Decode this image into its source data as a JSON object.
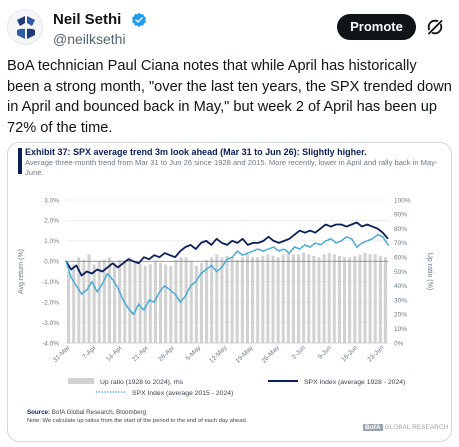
{
  "author": {
    "name": "Neil Sethi",
    "handle": "@neilksethi"
  },
  "header": {
    "promote_label": "Promote",
    "grok_icon": "grok-slash-icon",
    "verified_icon": "verified-badge-icon"
  },
  "tweet": {
    "text": "BoA technician Paul Ciana notes that while April has historically been a strong month, \"over the last ten years, the SPX trended down in April and bounced back in May,\" but week 2 of April has been up 72% of the time."
  },
  "exhibit": {
    "title": "Exhibit 37: SPX average trend 3m look ahead (Mar 31 to Jun 26): Slightly higher.",
    "subtitle": "Average three-month trend from Mar 31 to Jun 26 since 1928 and 2015. More recently, lower in April and rally back in May-June.",
    "source_label": "Source:",
    "source_text": "BofA Global Research, Bloomberg",
    "note": "Note: We calculate up ratios from the start of the period to the end of each day ahead.",
    "logo_text": "GLOBAL RESEARCH",
    "logo_box": "BofA"
  },
  "colors": {
    "navy": "#0a1f5c",
    "dotted": "#3fa6d8",
    "bars": "#d2d2d2",
    "grid": "#e3e3e3",
    "tick": "#6d7a86"
  },
  "chart_data": {
    "type": "bar",
    "x_ticks": [
      "31-Mar",
      "7-Apr",
      "14-Apr",
      "21-Apr",
      "28-Apr",
      "5-May",
      "12-May",
      "19-May",
      "26-May",
      "2-Jun",
      "9-Jun",
      "16-Jun",
      "23-Jun"
    ],
    "ylabel": "Avg return (%)",
    "ylabel2": "Up ratio (%)",
    "y_ticks": [
      "3.0%",
      "2.0%",
      "1.0%",
      "0.0%",
      "-1.0%",
      "-2.0%",
      "-3.0%",
      "-4.0%"
    ],
    "y2_ticks": [
      "100%",
      "90%",
      "80%",
      "70%",
      "60%",
      "50%",
      "40%",
      "30%",
      "20%",
      "10%",
      "0%"
    ],
    "ylim": [
      -4,
      3
    ],
    "y2lim": [
      0,
      100
    ],
    "series": [
      {
        "name": "Up ratio (1928 to 2024), rhs",
        "kind": "bar",
        "axis": "right",
        "values": [
          50,
          55,
          60,
          58,
          62,
          55,
          57,
          58,
          60,
          56,
          58,
          58,
          60,
          57,
          55,
          54,
          55,
          57,
          56,
          55,
          54,
          58,
          60,
          60,
          57,
          54,
          56,
          58,
          60,
          62,
          60,
          61,
          60,
          58,
          60,
          62,
          60,
          60,
          61,
          62,
          61,
          60,
          62,
          63,
          62,
          62,
          63,
          62,
          61,
          60,
          62,
          63,
          62,
          61,
          60,
          60,
          61,
          62,
          63,
          62,
          62,
          61,
          60
        ]
      },
      {
        "name": "SPX Index (average 1928 - 2024)",
        "kind": "line",
        "axis": "left",
        "values": [
          0,
          -0.4,
          -0.2,
          -0.7,
          -0.5,
          -0.6,
          -0.4,
          -0.5,
          -0.3,
          -0.1,
          -0.3,
          -0.1,
          0.1,
          0.0,
          -0.1,
          0.2,
          0.1,
          0.3,
          0.2,
          0.4,
          0.3,
          0.2,
          0.5,
          0.7,
          0.8,
          0.6,
          0.9,
          1.0,
          0.8,
          1.1,
          0.9,
          0.8,
          1.0,
          0.9,
          1.1,
          0.8,
          0.9,
          0.9,
          1.0,
          1.2,
          1.0,
          0.9,
          1.0,
          1.1,
          1.3,
          1.5,
          1.4,
          1.5,
          1.4,
          1.6,
          1.8,
          1.7,
          1.8,
          1.8,
          1.7,
          1.8,
          1.9,
          1.7,
          1.8,
          1.7,
          1.6,
          1.4,
          1.1
        ]
      },
      {
        "name": "SPX Index (average 2015 - 2024)",
        "kind": "dotted-line",
        "axis": "left",
        "values": [
          0,
          -0.8,
          -1.2,
          -1.6,
          -1.4,
          -1.0,
          -1.5,
          -1.1,
          -0.6,
          -0.9,
          -1.3,
          -1.9,
          -2.3,
          -2.6,
          -2.1,
          -2.4,
          -1.9,
          -2.0,
          -1.5,
          -1.2,
          -1.4,
          -1.6,
          -2.0,
          -1.7,
          -1.2,
          -1.0,
          -0.6,
          -0.4,
          -0.2,
          -0.5,
          -0.3,
          0.1,
          0.2,
          0.5,
          0.3,
          0.4,
          0.5,
          0.6,
          0.5,
          0.6,
          0.7,
          0.5,
          0.6,
          0.4,
          0.7,
          0.6,
          0.8,
          0.7,
          0.9,
          0.8,
          1.0,
          1.1,
          0.9,
          1.0,
          1.2,
          1.1,
          0.7,
          0.9,
          1.0,
          1.1,
          1.3,
          1.2,
          0.8
        ]
      }
    ],
    "legend_position": "bottom",
    "grid": true
  }
}
